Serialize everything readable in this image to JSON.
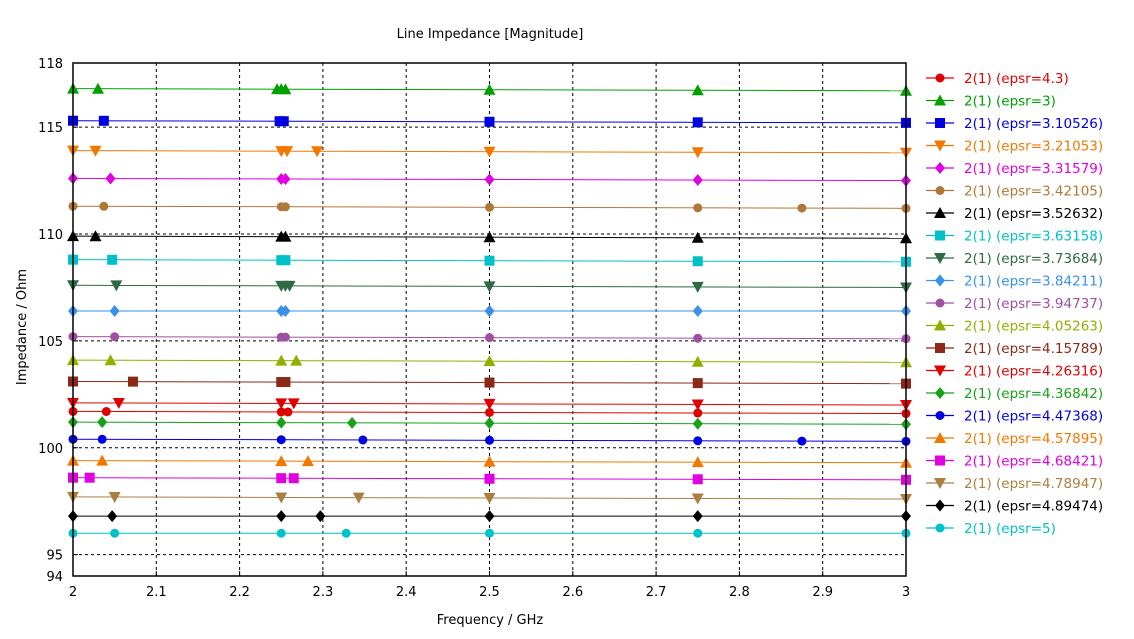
{
  "chart_data": {
    "type": "line",
    "title": "Line Impedance [Magnitude]",
    "xlabel": "Frequency / GHz",
    "ylabel": "Impedance / Ohm",
    "xlim": [
      2,
      3
    ],
    "ylim": [
      94,
      118
    ],
    "x_ticks": [
      "2",
      "2.1",
      "2.2",
      "2.3",
      "2.4",
      "2.5",
      "2.6",
      "2.7",
      "2.8",
      "2.9",
      "3"
    ],
    "y_ticks": [
      "94",
      "95",
      "100",
      "105",
      "110",
      "115",
      "118"
    ],
    "grid": true,
    "legend_position": "right",
    "series": [
      {
        "name": "2(1) (epsr=4.3)",
        "color": "#e00000",
        "marker": "circle",
        "y_start": 101.7,
        "y_end": 101.6,
        "marker_x": [
          2,
          2.04,
          2.25,
          2.258,
          2.5,
          2.75,
          3
        ]
      },
      {
        "name": "2(1) (epsr=3)",
        "color": "#00a000",
        "marker": "triangle-up",
        "y_start": 116.8,
        "y_end": 116.7,
        "marker_x": [
          2,
          2.03,
          2.245,
          2.25,
          2.255,
          2.5,
          2.75,
          3
        ]
      },
      {
        "name": "2(1) (epsr=3.10526)",
        "color": "#0000e0",
        "marker": "square",
        "y_start": 115.3,
        "y_end": 115.2,
        "marker_x": [
          2,
          2.037,
          2.248,
          2.253,
          2.5,
          2.75,
          3
        ]
      },
      {
        "name": "2(1) (epsr=3.21053)",
        "color": "#f07800",
        "marker": "triangle-down",
        "y_start": 113.9,
        "y_end": 113.8,
        "marker_x": [
          2,
          2.027,
          2.25,
          2.257,
          2.293,
          2.5,
          2.75,
          3
        ]
      },
      {
        "name": "2(1) (epsr=3.31579)",
        "color": "#e000e0",
        "marker": "diamond",
        "y_start": 112.6,
        "y_end": 112.5,
        "marker_x": [
          2,
          2.045,
          2.25,
          2.255,
          2.5,
          2.75,
          3
        ]
      },
      {
        "name": "2(1) (epsr=3.42105)",
        "color": "#b07838",
        "marker": "circle",
        "y_start": 111.3,
        "y_end": 111.2,
        "marker_x": [
          2,
          2.037,
          2.25,
          2.255,
          2.5,
          2.75,
          2.875,
          3
        ]
      },
      {
        "name": "2(1) (epsr=3.52632)",
        "color": "#000000",
        "marker": "triangle-up",
        "y_start": 109.9,
        "y_end": 109.8,
        "marker_x": [
          2,
          2.027,
          2.25,
          2.255,
          2.5,
          2.75,
          3
        ]
      },
      {
        "name": "2(1) (epsr=3.63158)",
        "color": "#00c0c8",
        "marker": "square",
        "y_start": 108.8,
        "y_end": 108.7,
        "marker_x": [
          2,
          2.047,
          2.25,
          2.255,
          2.5,
          2.75,
          3
        ]
      },
      {
        "name": "2(1) (epsr=3.73684)",
        "color": "#2e6a44",
        "marker": "triangle-down",
        "y_start": 107.6,
        "y_end": 107.5,
        "marker_x": [
          2,
          2.052,
          2.25,
          2.255,
          2.26,
          2.5,
          2.75,
          3
        ]
      },
      {
        "name": "2(1) (epsr=3.84211)",
        "color": "#3890e8",
        "marker": "diamond",
        "y_start": 106.4,
        "y_end": 106.4,
        "marker_x": [
          2,
          2.05,
          2.25,
          2.255,
          2.5,
          2.75,
          3
        ]
      },
      {
        "name": "2(1) (epsr=3.94737)",
        "color": "#a050a0",
        "marker": "circle",
        "y_start": 105.2,
        "y_end": 105.1,
        "marker_x": [
          2,
          2.05,
          2.25,
          2.255,
          2.5,
          2.75,
          3
        ]
      },
      {
        "name": "2(1) (epsr=4.05263)",
        "color": "#90b000",
        "marker": "triangle-up",
        "y_start": 104.1,
        "y_end": 104.0,
        "marker_x": [
          2,
          2.045,
          2.25,
          2.268,
          2.5,
          2.75,
          3
        ]
      },
      {
        "name": "2(1) (epsr=4.15789)",
        "color": "#8b2818",
        "marker": "square",
        "y_start": 103.1,
        "y_end": 103.0,
        "marker_x": [
          2,
          2.072,
          2.25,
          2.255,
          2.5,
          2.75,
          3
        ]
      },
      {
        "name": "2(1) (epsr=4.26316)",
        "color": "#e00000",
        "marker": "triangle-down",
        "y_start": 102.1,
        "y_end": 102.0,
        "marker_x": [
          2,
          2.055,
          2.25,
          2.265,
          2.5,
          2.75,
          3
        ]
      },
      {
        "name": "2(1) (epsr=4.36842)",
        "color": "#18a018",
        "marker": "diamond",
        "y_start": 101.2,
        "y_end": 101.1,
        "marker_x": [
          2,
          2.035,
          2.25,
          2.335,
          2.5,
          2.75,
          3
        ]
      },
      {
        "name": "2(1) (epsr=4.47368)",
        "color": "#0000e0",
        "marker": "circle",
        "y_start": 100.4,
        "y_end": 100.3,
        "marker_x": [
          2,
          2.035,
          2.25,
          2.348,
          2.5,
          2.75,
          2.875,
          3
        ]
      },
      {
        "name": "2(1) (epsr=4.57895)",
        "color": "#f07800",
        "marker": "triangle-up",
        "y_start": 99.4,
        "y_end": 99.3,
        "marker_x": [
          2,
          2.035,
          2.25,
          2.282,
          2.5,
          2.75,
          3
        ]
      },
      {
        "name": "2(1) (epsr=4.68421)",
        "color": "#e000e0",
        "marker": "square",
        "y_start": 98.6,
        "y_end": 98.5,
        "marker_x": [
          2,
          2.02,
          2.25,
          2.265,
          2.5,
          2.75,
          3
        ]
      },
      {
        "name": "2(1) (epsr=4.78947)",
        "color": "#a88040",
        "marker": "triangle-down",
        "y_start": 97.7,
        "y_end": 97.6,
        "marker_x": [
          2,
          2.05,
          2.25,
          2.343,
          2.5,
          2.75,
          3
        ]
      },
      {
        "name": "2(1) (epsr=4.89474)",
        "color": "#000000",
        "marker": "diamond",
        "y_start": 96.8,
        "y_end": 96.8,
        "marker_x": [
          2,
          2.047,
          2.25,
          2.297,
          2.5,
          2.75,
          3
        ]
      },
      {
        "name": "2(1) (epsr=5)",
        "color": "#00c0c8",
        "marker": "circle",
        "y_start": 96.0,
        "y_end": 96.0,
        "marker_x": [
          2,
          2.05,
          2.25,
          2.328,
          2.5,
          2.75,
          3
        ]
      }
    ]
  }
}
